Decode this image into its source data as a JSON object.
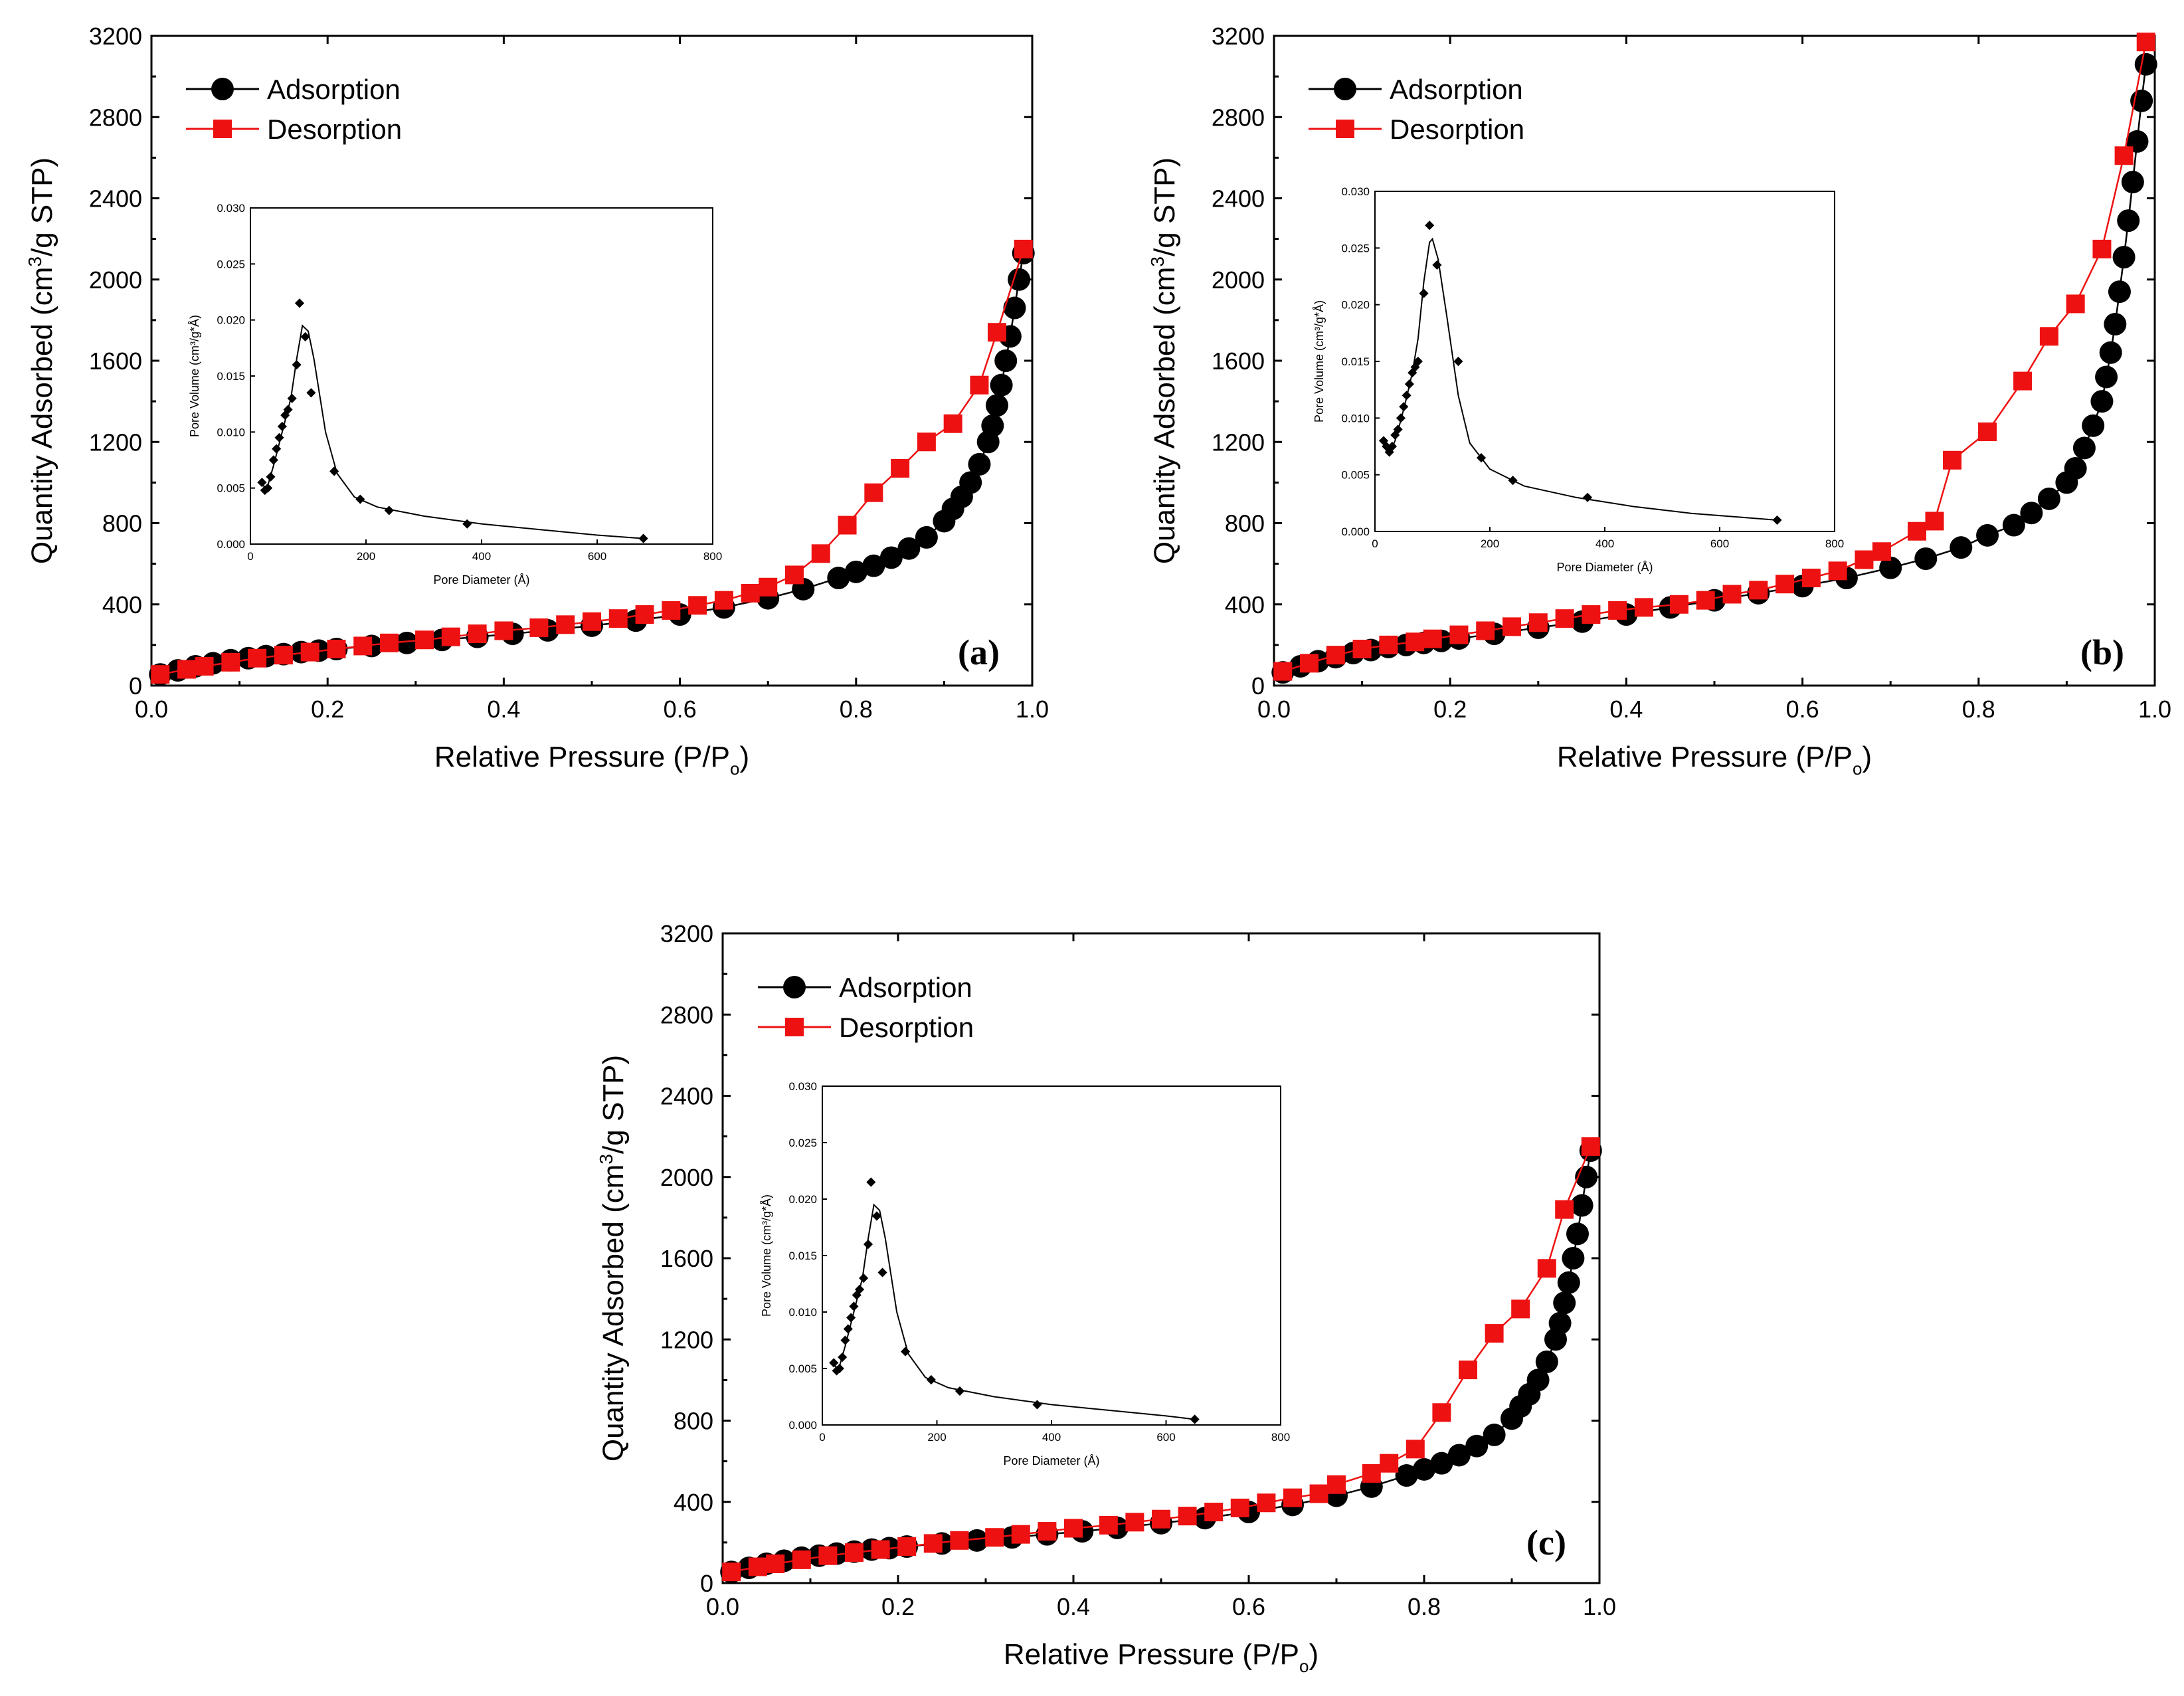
{
  "chart_data": [
    {
      "type": "line",
      "panel_label": "(a)",
      "xlabel": "Relative Pressure (P/P",
      "xlabel_sub": "o",
      "xlabel_end": ")",
      "ylabel": "Quantity Adsorbed (cm",
      "ylabel_sup": "3",
      "ylabel_end": "/g STP)",
      "xlim": [
        0.0,
        1.0
      ],
      "ylim": [
        0,
        3200
      ],
      "x_ticks": [
        "0.0",
        "0.2",
        "0.4",
        "0.6",
        "0.8",
        "1.0"
      ],
      "y_ticks": [
        "0",
        "400",
        "800",
        "1200",
        "1600",
        "2000",
        "2400",
        "2800",
        "3200"
      ],
      "legend_position": "top-left",
      "series": [
        {
          "name": "Adsorption",
          "color": "#000000",
          "marker": "circle",
          "x": [
            0.01,
            0.03,
            0.05,
            0.07,
            0.09,
            0.11,
            0.13,
            0.15,
            0.17,
            0.19,
            0.21,
            0.25,
            0.29,
            0.33,
            0.37,
            0.41,
            0.45,
            0.5,
            0.55,
            0.6,
            0.65,
            0.7,
            0.74,
            0.78,
            0.8,
            0.82,
            0.84,
            0.86,
            0.88,
            0.9,
            0.91,
            0.92,
            0.93,
            0.94,
            0.95,
            0.955,
            0.96,
            0.965,
            0.97,
            0.975,
            0.98,
            0.985,
            0.99
          ],
          "y": [
            55,
            75,
            95,
            110,
            125,
            135,
            145,
            155,
            165,
            172,
            180,
            195,
            210,
            225,
            240,
            255,
            272,
            295,
            320,
            350,
            385,
            430,
            475,
            530,
            560,
            590,
            630,
            675,
            730,
            810,
            870,
            930,
            1000,
            1090,
            1200,
            1280,
            1380,
            1480,
            1600,
            1720,
            1860,
            2000,
            2130
          ]
        },
        {
          "name": "Desorption",
          "color": "#ee1111",
          "marker": "square",
          "x": [
            0.99,
            0.96,
            0.94,
            0.91,
            0.88,
            0.85,
            0.82,
            0.79,
            0.76,
            0.73,
            0.7,
            0.68,
            0.65,
            0.62,
            0.59,
            0.56,
            0.53,
            0.5,
            0.47,
            0.44,
            0.4,
            0.37,
            0.34,
            0.31,
            0.27,
            0.24,
            0.21,
            0.18,
            0.15,
            0.12,
            0.09,
            0.06,
            0.04,
            0.01
          ],
          "y": [
            2150,
            1740,
            1480,
            1290,
            1200,
            1070,
            950,
            790,
            650,
            545,
            485,
            455,
            420,
            395,
            370,
            350,
            330,
            315,
            300,
            285,
            270,
            255,
            240,
            225,
            210,
            195,
            180,
            165,
            150,
            135,
            115,
            95,
            80,
            55
          ]
        }
      ],
      "inset": {
        "type": "line",
        "xlabel": "Pore Diameter (Å)",
        "ylabel": "Pore Volume (cm³/g*Å)",
        "xlim": [
          0,
          800
        ],
        "ylim": [
          0,
          0.03
        ],
        "x_ticks": [
          "0",
          "200",
          "400",
          "600",
          "800"
        ],
        "y_ticks": [
          "0.000",
          "0.005",
          "0.010",
          "0.015",
          "0.020",
          "0.025",
          "0.030"
        ],
        "points": {
          "x": [
            20,
            25,
            30,
            35,
            40,
            45,
            50,
            55,
            60,
            65,
            72,
            80,
            85,
            95,
            105,
            145,
            190,
            240,
            375,
            680
          ],
          "y": [
            0.0055,
            0.0048,
            0.005,
            0.006,
            0.0075,
            0.0085,
            0.0095,
            0.0105,
            0.0115,
            0.012,
            0.013,
            0.016,
            0.0215,
            0.0185,
            0.0135,
            0.0065,
            0.004,
            0.003,
            0.0018,
            0.0005
          ]
        },
        "curve": {
          "x": [
            20,
            25,
            30,
            40,
            50,
            60,
            70,
            80,
            90,
            100,
            110,
            130,
            150,
            180,
            220,
            300,
            400,
            500,
            600,
            680
          ],
          "y": [
            0.0055,
            0.005,
            0.0052,
            0.007,
            0.009,
            0.011,
            0.013,
            0.0165,
            0.0195,
            0.019,
            0.0165,
            0.01,
            0.0063,
            0.0042,
            0.0033,
            0.0025,
            0.0018,
            0.0013,
            0.0008,
            0.0005
          ]
        }
      }
    },
    {
      "type": "line",
      "panel_label": "(b)",
      "xlabel": "Relative Pressure (P/P",
      "xlabel_sub": "o",
      "xlabel_end": ")",
      "ylabel": "Quantity Adsorbed (cm",
      "ylabel_sup": "3",
      "ylabel_end": "/g STP)",
      "xlim": [
        0.0,
        1.0
      ],
      "ylim": [
        0,
        3200
      ],
      "x_ticks": [
        "0.0",
        "0.2",
        "0.4",
        "0.6",
        "0.8",
        "1.0"
      ],
      "y_ticks": [
        "0",
        "400",
        "800",
        "1200",
        "1600",
        "2000",
        "2400",
        "2800",
        "3200"
      ],
      "legend_position": "top-left",
      "series": [
        {
          "name": "Adsorption",
          "color": "#000000",
          "marker": "circle",
          "x": [
            0.01,
            0.03,
            0.05,
            0.07,
            0.09,
            0.11,
            0.13,
            0.15,
            0.17,
            0.19,
            0.21,
            0.25,
            0.3,
            0.35,
            0.4,
            0.45,
            0.5,
            0.55,
            0.6,
            0.65,
            0.7,
            0.74,
            0.78,
            0.81,
            0.84,
            0.86,
            0.88,
            0.9,
            0.91,
            0.92,
            0.93,
            0.94,
            0.945,
            0.95,
            0.955,
            0.96,
            0.965,
            0.97,
            0.975,
            0.98,
            0.985,
            0.99
          ],
          "y": [
            65,
            95,
            120,
            140,
            160,
            175,
            190,
            200,
            210,
            220,
            232,
            255,
            285,
            315,
            350,
            385,
            420,
            455,
            490,
            530,
            580,
            625,
            680,
            740,
            790,
            850,
            920,
            1000,
            1070,
            1170,
            1280,
            1400,
            1520,
            1640,
            1780,
            1940,
            2110,
            2290,
            2480,
            2680,
            2880,
            3060
          ]
        },
        {
          "name": "Desorption",
          "color": "#ee1111",
          "marker": "square",
          "x": [
            0.99,
            0.965,
            0.94,
            0.91,
            0.88,
            0.85,
            0.81,
            0.77,
            0.75,
            0.73,
            0.69,
            0.67,
            0.64,
            0.61,
            0.58,
            0.55,
            0.52,
            0.49,
            0.46,
            0.42,
            0.39,
            0.36,
            0.33,
            0.3,
            0.27,
            0.24,
            0.21,
            0.18,
            0.16,
            0.13,
            0.1,
            0.07,
            0.04,
            0.01
          ],
          "y": [
            3170,
            2610,
            2150,
            1880,
            1720,
            1500,
            1250,
            1110,
            810,
            760,
            660,
            620,
            565,
            530,
            500,
            470,
            450,
            420,
            400,
            385,
            370,
            350,
            330,
            310,
            290,
            270,
            250,
            230,
            215,
            200,
            180,
            150,
            110,
            70
          ]
        }
      ],
      "inset": {
        "type": "line",
        "xlabel": "Pore Diameter (Å)",
        "ylabel": "Pore Volume (cm³/g*Å)",
        "xlim": [
          0,
          800
        ],
        "ylim": [
          0,
          0.03
        ],
        "x_ticks": [
          "0",
          "200",
          "400",
          "600",
          "800"
        ],
        "y_ticks": [
          "0.000",
          "0.005",
          "0.010",
          "0.015",
          "0.020",
          "0.025",
          "0.030"
        ],
        "points": {
          "x": [
            15,
            20,
            25,
            30,
            35,
            40,
            45,
            50,
            55,
            60,
            65,
            70,
            75,
            85,
            95,
            108,
            145,
            185,
            240,
            370,
            700
          ],
          "y": [
            0.008,
            0.0075,
            0.007,
            0.0075,
            0.0085,
            0.009,
            0.01,
            0.011,
            0.012,
            0.013,
            0.014,
            0.0145,
            0.015,
            0.021,
            0.027,
            0.0235,
            0.015,
            0.0065,
            0.0045,
            0.003,
            0.001
          ]
        },
        "curve": {
          "x": [
            15,
            25,
            35,
            45,
            55,
            65,
            75,
            85,
            95,
            100,
            110,
            125,
            145,
            165,
            200,
            260,
            350,
            450,
            550,
            650,
            700
          ],
          "y": [
            0.008,
            0.0068,
            0.008,
            0.0098,
            0.0118,
            0.014,
            0.017,
            0.022,
            0.0255,
            0.0258,
            0.024,
            0.019,
            0.012,
            0.0078,
            0.0055,
            0.004,
            0.003,
            0.0022,
            0.0016,
            0.0012,
            0.001
          ]
        }
      }
    },
    {
      "type": "line",
      "panel_label": "(c)",
      "xlabel": "Relative Pressure (P/P",
      "xlabel_sub": "o",
      "xlabel_end": ")",
      "ylabel": "Quantity Adsorbed (cm",
      "ylabel_sup": "3",
      "ylabel_end": "/g STP)",
      "xlim": [
        0.0,
        1.0
      ],
      "ylim": [
        0,
        3200
      ],
      "x_ticks": [
        "0.0",
        "0.2",
        "0.4",
        "0.6",
        "0.8",
        "1.0"
      ],
      "y_ticks": [
        "0",
        "400",
        "800",
        "1200",
        "1600",
        "2000",
        "2400",
        "2800",
        "3200"
      ],
      "legend_position": "top-left",
      "series": [
        {
          "name": "Adsorption",
          "color": "#000000",
          "marker": "circle",
          "x": [
            0.01,
            0.03,
            0.05,
            0.07,
            0.09,
            0.11,
            0.13,
            0.15,
            0.17,
            0.19,
            0.21,
            0.25,
            0.29,
            0.33,
            0.37,
            0.41,
            0.45,
            0.5,
            0.55,
            0.6,
            0.65,
            0.7,
            0.74,
            0.78,
            0.8,
            0.82,
            0.84,
            0.86,
            0.88,
            0.9,
            0.91,
            0.92,
            0.93,
            0.94,
            0.95,
            0.955,
            0.96,
            0.965,
            0.97,
            0.975,
            0.98,
            0.985,
            0.99
          ],
          "y": [
            55,
            75,
            95,
            110,
            125,
            135,
            145,
            155,
            165,
            172,
            180,
            195,
            210,
            225,
            240,
            255,
            272,
            295,
            320,
            350,
            385,
            430,
            475,
            530,
            560,
            590,
            630,
            675,
            730,
            810,
            870,
            930,
            1000,
            1090,
            1200,
            1280,
            1380,
            1480,
            1600,
            1720,
            1860,
            2000,
            2130
          ]
        },
        {
          "name": "Desorption",
          "color": "#ee1111",
          "marker": "square",
          "x": [
            0.99,
            0.96,
            0.94,
            0.91,
            0.88,
            0.85,
            0.82,
            0.79,
            0.76,
            0.74,
            0.7,
            0.68,
            0.65,
            0.62,
            0.59,
            0.56,
            0.53,
            0.5,
            0.47,
            0.44,
            0.4,
            0.37,
            0.34,
            0.31,
            0.27,
            0.24,
            0.21,
            0.18,
            0.15,
            0.12,
            0.09,
            0.06,
            0.04,
            0.01
          ],
          "y": [
            2150,
            1840,
            1550,
            1350,
            1230,
            1050,
            840,
            660,
            590,
            540,
            485,
            440,
            420,
            395,
            370,
            350,
            330,
            315,
            300,
            285,
            270,
            255,
            240,
            225,
            210,
            195,
            180,
            165,
            150,
            135,
            115,
            95,
            80,
            55
          ]
        }
      ],
      "inset": {
        "type": "line",
        "xlabel": "Pore Diameter (Å)",
        "ylabel": "Pore Volume (cm³/g*Å)",
        "xlim": [
          0,
          800
        ],
        "ylim": [
          0,
          0.03
        ],
        "x_ticks": [
          "0",
          "200",
          "400",
          "600",
          "800"
        ],
        "y_ticks": [
          "0.000",
          "0.005",
          "0.010",
          "0.015",
          "0.020",
          "0.025",
          "0.030"
        ],
        "points": {
          "x": [
            20,
            25,
            30,
            35,
            40,
            45,
            50,
            55,
            60,
            65,
            72,
            80,
            85,
            95,
            105,
            145,
            190,
            240,
            375,
            650
          ],
          "y": [
            0.0055,
            0.0048,
            0.005,
            0.006,
            0.0075,
            0.0085,
            0.0095,
            0.0105,
            0.0115,
            0.012,
            0.013,
            0.016,
            0.0215,
            0.0185,
            0.0135,
            0.0065,
            0.004,
            0.003,
            0.0018,
            0.0005
          ]
        },
        "curve": {
          "x": [
            20,
            25,
            30,
            40,
            50,
            60,
            70,
            80,
            90,
            100,
            110,
            130,
            150,
            180,
            220,
            300,
            400,
            500,
            600,
            650
          ],
          "y": [
            0.0055,
            0.005,
            0.0052,
            0.007,
            0.009,
            0.011,
            0.013,
            0.0165,
            0.0195,
            0.019,
            0.0165,
            0.01,
            0.0063,
            0.0042,
            0.0033,
            0.0025,
            0.0018,
            0.0013,
            0.0008,
            0.0005
          ]
        }
      }
    }
  ]
}
